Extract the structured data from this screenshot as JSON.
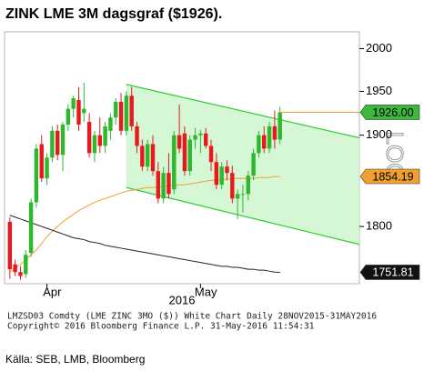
{
  "chart_data": {
    "type": "candlestick",
    "title": "ZINK LME 3M dagsgraf ($1926).",
    "categories": [
      null,
      null,
      null,
      null,
      null,
      null,
      null,
      null,
      "Apr",
      null,
      null,
      null,
      null,
      null,
      null,
      null,
      null,
      null,
      null,
      null,
      null,
      null,
      null,
      null,
      null,
      null,
      null,
      null,
      null,
      null,
      null,
      null,
      null,
      null,
      null,
      null,
      null,
      "May",
      null,
      null,
      null,
      null,
      null,
      null,
      null,
      null,
      null,
      null,
      null,
      null,
      null,
      null
    ],
    "x_sublabel": "2016",
    "open": [
      1805,
      1760,
      1752,
      1750,
      1772,
      1826,
      1890,
      1852,
      1875,
      1905,
      1878,
      1912,
      1930,
      1940,
      1925,
      1915,
      1880,
      1900,
      1888,
      1905,
      1920,
      1938,
      1905,
      1945,
      1910,
      1888,
      1865,
      1890,
      1860,
      1830,
      1858,
      1840,
      1900,
      1902,
      1860,
      1895,
      1900,
      1902,
      1888,
      1870,
      1845,
      1865,
      1858,
      1830,
      1835,
      1835,
      1855,
      1880,
      1900,
      1885,
      1910,
      1895
    ],
    "high": [
      1810,
      1765,
      1758,
      1775,
      1830,
      1890,
      1900,
      1880,
      1910,
      1912,
      1915,
      1935,
      1945,
      1955,
      1960,
      1925,
      1905,
      1920,
      1915,
      1925,
      1942,
      1948,
      1950,
      1955,
      1915,
      1895,
      1895,
      1900,
      1870,
      1865,
      1880,
      1905,
      1935,
      1910,
      1900,
      1908,
      1906,
      1908,
      1895,
      1880,
      1870,
      1872,
      1866,
      1840,
      1845,
      1860,
      1885,
      1905,
      1910,
      1915,
      1928,
      1932
    ],
    "low": [
      1745,
      1748,
      1744,
      1746,
      1768,
      1820,
      1848,
      1845,
      1870,
      1872,
      1860,
      1905,
      1920,
      1905,
      1915,
      1875,
      1870,
      1880,
      1880,
      1895,
      1912,
      1900,
      1900,
      1905,
      1880,
      1860,
      1860,
      1855,
      1825,
      1825,
      1830,
      1835,
      1880,
      1855,
      1855,
      1885,
      1880,
      1885,
      1860,
      1840,
      1840,
      1850,
      1825,
      1808,
      1815,
      1828,
      1850,
      1875,
      1880,
      1880,
      1885,
      1890
    ],
    "close": [
      1755,
      1752,
      1748,
      1770,
      1826,
      1885,
      1852,
      1875,
      1905,
      1878,
      1912,
      1930,
      1942,
      1912,
      1930,
      1880,
      1900,
      1888,
      1910,
      1920,
      1938,
      1905,
      1945,
      1910,
      1888,
      1865,
      1890,
      1860,
      1830,
      1858,
      1835,
      1900,
      1885,
      1860,
      1895,
      1900,
      1902,
      1888,
      1870,
      1845,
      1865,
      1858,
      1830,
      1835,
      1835,
      1855,
      1880,
      1900,
      1885,
      1910,
      1895,
      1926
    ],
    "up_color": "#2db82d",
    "down_color": "#e8191c",
    "series": [
      {
        "color": "#f0a030",
        "values": [
          1752,
          1756,
          1760,
          1765,
          1770,
          1775,
          1782,
          1789,
          1795,
          1800,
          1805,
          1809,
          1813,
          1817,
          1820,
          1823,
          1826,
          1828,
          1830,
          1832,
          1834,
          1836,
          1838,
          1839,
          1840,
          1841,
          1842,
          1842,
          1843,
          1843,
          1844,
          1844,
          1845,
          1845,
          1846,
          1847,
          1848,
          1849,
          1850,
          1850,
          1851,
          1851,
          1852,
          1852,
          1852,
          1852,
          1852,
          1853,
          1853,
          1853,
          1854,
          1854.19
        ]
      },
      {
        "color": "#222222",
        "values": [
          1812,
          1810,
          1808,
          1806,
          1804,
          1802,
          1800,
          1798,
          1796,
          1794,
          1792,
          1790,
          1788,
          1787,
          1786,
          1784,
          1783,
          1782,
          1780,
          1779,
          1778,
          1777,
          1776,
          1775,
          1774,
          1773,
          1772,
          1771,
          1770,
          1769,
          1768,
          1767,
          1766,
          1765,
          1764,
          1763,
          1762,
          1761,
          1760,
          1759,
          1758,
          1758,
          1757,
          1757,
          1756,
          1755,
          1755,
          1754,
          1754,
          1753,
          1752,
          1751.81
        ]
      }
    ],
    "channel": {
      "x": [
        22,
        66
      ],
      "upper": [
        1958,
        1897
      ],
      "lower": [
        1842,
        1781
      ],
      "color": "#33cc33",
      "fill": "#ccf5cc"
    },
    "price_tags": [
      {
        "value": 1926,
        "label": "1926.00",
        "color": "#3cb83c",
        "text_color": "#000000"
      },
      {
        "value": 1854.19,
        "color": "#f0a030",
        "text_color": "#000000"
      },
      {
        "value": 1751.81,
        "color": "#111111",
        "text_color": "#ffffff"
      }
    ],
    "last_line_color": "#f0a030",
    "xlim": [
      -1,
      66
    ],
    "ylim": [
      1740,
      2020
    ],
    "yticks": [
      1800,
      1900,
      1950,
      2000
    ],
    "log_scale": true,
    "axis_note": "LOG",
    "footer": [
      "LMZSD03 Comdty (LME ZINC    3MO ($)) White Chart  Daily 28NOV2015-31MAY2016",
      "Copyright© 2016 Bloomberg Finance L.P.          31-May-2016 11:54:31"
    ],
    "source": "Källa: SEB, LMB, Bloomberg"
  }
}
